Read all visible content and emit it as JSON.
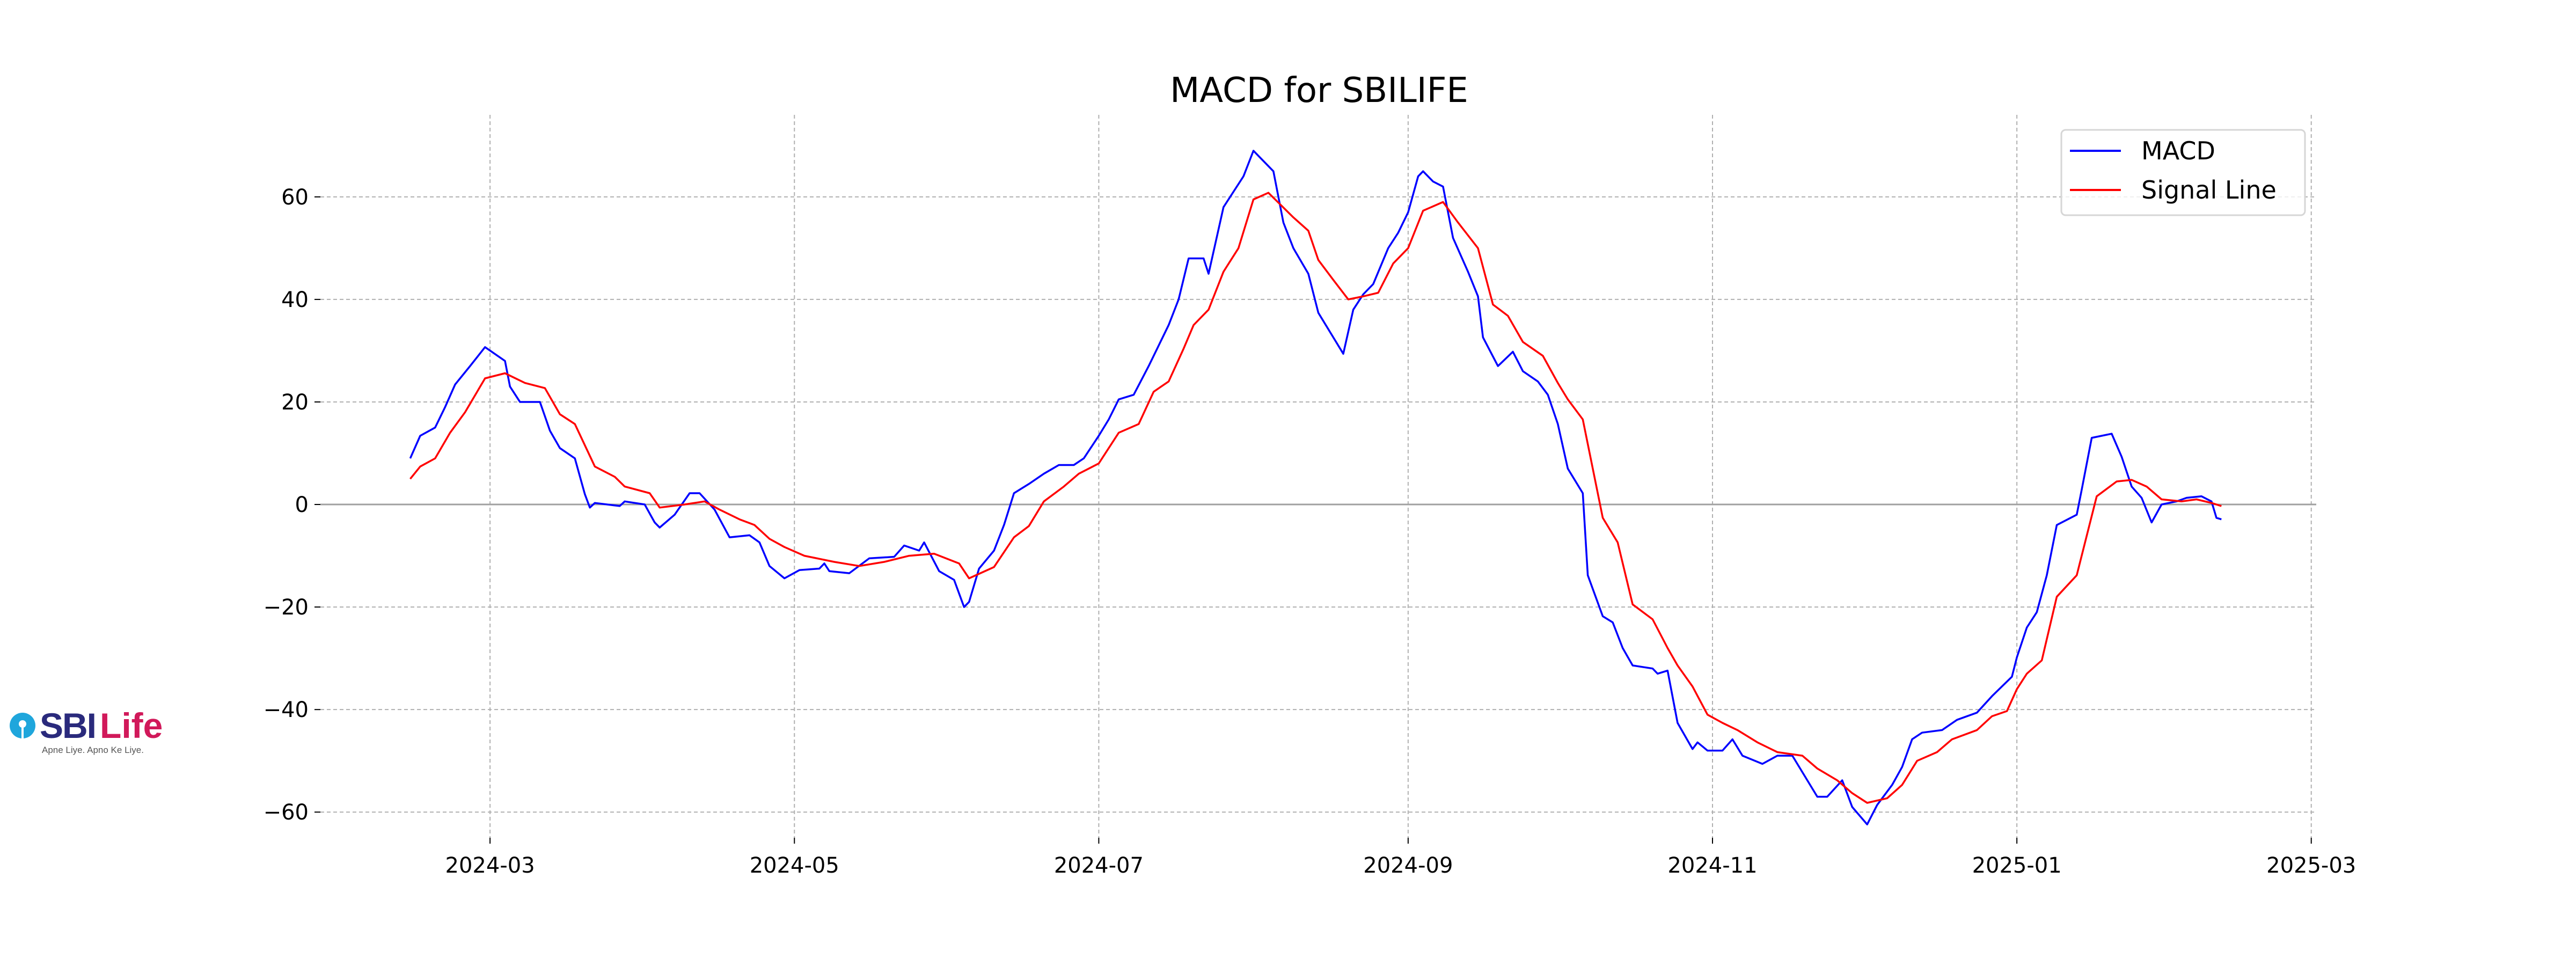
{
  "logo": {
    "brand_a": "SBI",
    "brand_b": "Life",
    "tagline": "Apne Liye. Apno Ke Liye."
  },
  "chart_data": {
    "type": "line",
    "title": "MACD for SBILIFE",
    "xlabel": "",
    "ylabel": "",
    "xlim": [
      "2024-01-27",
      "2025-03-02"
    ],
    "ylim": [
      -65,
      76
    ],
    "x_ticks": [
      "2024-03",
      "2024-05",
      "2024-07",
      "2024-09",
      "2024-11",
      "2025-01",
      "2025-03"
    ],
    "y_ticks": [
      -60,
      -40,
      -20,
      0,
      20,
      40,
      60
    ],
    "grid": true,
    "zero_line": 0,
    "legend": {
      "placement": "top-right",
      "entries": [
        "MACD",
        "Signal Line"
      ]
    },
    "colors": {
      "MACD": "#0000ff",
      "Signal Line": "#ff0000",
      "grid": "#b0b0b0",
      "zero": "#a0a0a0"
    },
    "series": [
      {
        "name": "MACD",
        "points": [
          [
            "2024-02-14",
            9
          ],
          [
            "2024-02-16",
            13.4
          ],
          [
            "2024-02-19",
            15
          ],
          [
            "2024-02-21",
            19
          ],
          [
            "2024-02-23",
            23.4
          ],
          [
            "2024-02-26",
            27
          ],
          [
            "2024-02-29",
            30.7
          ],
          [
            "2024-03-04",
            28
          ],
          [
            "2024-03-05",
            23
          ],
          [
            "2024-03-07",
            20
          ],
          [
            "2024-03-11",
            20
          ],
          [
            "2024-03-13",
            14.4
          ],
          [
            "2024-03-15",
            11
          ],
          [
            "2024-03-18",
            9
          ],
          [
            "2024-03-20",
            2
          ],
          [
            "2024-03-21",
            -0.6
          ],
          [
            "2024-03-22",
            0.3
          ],
          [
            "2024-03-27",
            -0.3
          ],
          [
            "2024-03-28",
            0.6
          ],
          [
            "2024-04-01",
            0
          ],
          [
            "2024-04-03",
            -3.5
          ],
          [
            "2024-04-04",
            -4.5
          ],
          [
            "2024-04-07",
            -2
          ],
          [
            "2024-04-10",
            2.2
          ],
          [
            "2024-04-12",
            2.2
          ],
          [
            "2024-04-15",
            -1
          ],
          [
            "2024-04-18",
            -6.4
          ],
          [
            "2024-04-22",
            -6
          ],
          [
            "2024-04-24",
            -7.4
          ],
          [
            "2024-04-26",
            -12
          ],
          [
            "2024-04-29",
            -14.4
          ],
          [
            "2024-05-02",
            -12.8
          ],
          [
            "2024-05-06",
            -12.5
          ],
          [
            "2024-05-07",
            -11.5
          ],
          [
            "2024-05-08",
            -13
          ],
          [
            "2024-05-12",
            -13.4
          ],
          [
            "2024-05-16",
            -10.5
          ],
          [
            "2024-05-21",
            -10.2
          ],
          [
            "2024-05-23",
            -8
          ],
          [
            "2024-05-26",
            -9
          ],
          [
            "2024-05-27",
            -7.4
          ],
          [
            "2024-05-30",
            -13
          ],
          [
            "2024-06-02",
            -14.7
          ],
          [
            "2024-06-04",
            -20
          ],
          [
            "2024-06-05",
            -19
          ],
          [
            "2024-06-07",
            -12.5
          ],
          [
            "2024-06-10",
            -9
          ],
          [
            "2024-06-12",
            -4
          ],
          [
            "2024-06-14",
            2.2
          ],
          [
            "2024-06-17",
            4
          ],
          [
            "2024-06-20",
            6
          ],
          [
            "2024-06-23",
            7.7
          ],
          [
            "2024-06-26",
            7.7
          ],
          [
            "2024-06-28",
            9
          ],
          [
            "2024-07-01",
            13.4
          ],
          [
            "2024-07-03",
            16.6
          ],
          [
            "2024-07-05",
            20.5
          ],
          [
            "2024-07-08",
            21.4
          ],
          [
            "2024-07-11",
            27
          ],
          [
            "2024-07-15",
            35
          ],
          [
            "2024-07-17",
            40
          ],
          [
            "2024-07-19",
            48
          ],
          [
            "2024-07-22",
            48
          ],
          [
            "2024-07-23",
            45
          ],
          [
            "2024-07-26",
            58
          ],
          [
            "2024-07-30",
            64
          ],
          [
            "2024-08-01",
            69
          ],
          [
            "2024-08-03",
            67
          ],
          [
            "2024-08-05",
            65
          ],
          [
            "2024-08-07",
            55
          ],
          [
            "2024-08-09",
            50
          ],
          [
            "2024-08-12",
            45
          ],
          [
            "2024-08-14",
            37.4
          ],
          [
            "2024-08-17",
            32.6
          ],
          [
            "2024-08-19",
            29.4
          ],
          [
            "2024-08-21",
            38
          ],
          [
            "2024-08-23",
            41
          ],
          [
            "2024-08-25",
            43
          ],
          [
            "2024-08-28",
            50
          ],
          [
            "2024-08-30",
            53
          ],
          [
            "2024-09-01",
            57
          ],
          [
            "2024-09-03",
            64
          ],
          [
            "2024-09-04",
            65
          ],
          [
            "2024-09-06",
            63
          ],
          [
            "2024-09-08",
            62
          ],
          [
            "2024-09-10",
            52
          ],
          [
            "2024-09-13",
            45.4
          ],
          [
            "2024-09-15",
            40.6
          ],
          [
            "2024-09-16",
            32.6
          ],
          [
            "2024-09-19",
            27
          ],
          [
            "2024-09-22",
            29.8
          ],
          [
            "2024-09-24",
            26
          ],
          [
            "2024-09-27",
            24
          ],
          [
            "2024-09-29",
            21.4
          ],
          [
            "2024-10-01",
            15.7
          ],
          [
            "2024-10-03",
            7
          ],
          [
            "2024-10-06",
            2.2
          ],
          [
            "2024-10-07",
            -13.8
          ],
          [
            "2024-10-10",
            -21.8
          ],
          [
            "2024-10-12",
            -23
          ],
          [
            "2024-10-14",
            -28
          ],
          [
            "2024-10-16",
            -31.4
          ],
          [
            "2024-10-20",
            -32
          ],
          [
            "2024-10-21",
            -33
          ],
          [
            "2024-10-23",
            -32.4
          ],
          [
            "2024-10-25",
            -42.6
          ],
          [
            "2024-10-28",
            -47.7
          ],
          [
            "2024-10-29",
            -46.4
          ],
          [
            "2024-10-31",
            -48
          ],
          [
            "2024-11-03",
            -48
          ],
          [
            "2024-11-05",
            -45.8
          ],
          [
            "2024-11-07",
            -49
          ],
          [
            "2024-11-11",
            -50.6
          ],
          [
            "2024-11-14",
            -49
          ],
          [
            "2024-11-17",
            -49
          ],
          [
            "2024-11-22",
            -57
          ],
          [
            "2024-11-24",
            -57
          ],
          [
            "2024-11-27",
            -53.8
          ],
          [
            "2024-11-29",
            -59
          ],
          [
            "2024-12-02",
            -62.4
          ],
          [
            "2024-12-04",
            -58.6
          ],
          [
            "2024-12-07",
            -54.7
          ],
          [
            "2024-12-09",
            -51.2
          ],
          [
            "2024-12-11",
            -45.8
          ],
          [
            "2024-12-13",
            -44.5
          ],
          [
            "2024-12-17",
            -44
          ],
          [
            "2024-12-20",
            -42
          ],
          [
            "2024-12-24",
            -40.6
          ],
          [
            "2024-12-27",
            -37.4
          ],
          [
            "2024-12-31",
            -33.6
          ],
          [
            "2025-01-01",
            -29.8
          ],
          [
            "2025-01-03",
            -24
          ],
          [
            "2025-01-05",
            -21
          ],
          [
            "2025-01-07",
            -13.8
          ],
          [
            "2025-01-09",
            -4
          ],
          [
            "2025-01-13",
            -2
          ],
          [
            "2025-01-14",
            2.9
          ],
          [
            "2025-01-16",
            13
          ],
          [
            "2025-01-20",
            13.8
          ],
          [
            "2025-01-22",
            9.3
          ],
          [
            "2025-01-24",
            3.5
          ],
          [
            "2025-01-26",
            1.3
          ],
          [
            "2025-01-28",
            -3.5
          ],
          [
            "2025-01-30",
            0
          ],
          [
            "2025-02-02",
            0.6
          ],
          [
            "2025-02-04",
            1.3
          ],
          [
            "2025-02-07",
            1.6
          ],
          [
            "2025-02-09",
            0.6
          ],
          [
            "2025-02-10",
            -2.6
          ],
          [
            "2025-02-11",
            -2.9
          ]
        ]
      },
      {
        "name": "Signal Line",
        "points": [
          [
            "2024-02-14",
            5
          ],
          [
            "2024-02-16",
            7.4
          ],
          [
            "2024-02-19",
            9
          ],
          [
            "2024-02-22",
            14
          ],
          [
            "2024-02-25",
            18
          ],
          [
            "2024-02-29",
            24.6
          ],
          [
            "2024-03-04",
            25.6
          ],
          [
            "2024-03-08",
            23.7
          ],
          [
            "2024-03-12",
            22.7
          ],
          [
            "2024-03-15",
            17.6
          ],
          [
            "2024-03-18",
            15.7
          ],
          [
            "2024-03-22",
            7.4
          ],
          [
            "2024-03-26",
            5.4
          ],
          [
            "2024-03-28",
            3.5
          ],
          [
            "2024-04-02",
            2.2
          ],
          [
            "2024-04-04",
            -0.6
          ],
          [
            "2024-04-09",
            0
          ],
          [
            "2024-04-13",
            0.6
          ],
          [
            "2024-04-16",
            -1
          ],
          [
            "2024-04-20",
            -2.9
          ],
          [
            "2024-04-23",
            -4
          ],
          [
            "2024-04-26",
            -6.7
          ],
          [
            "2024-04-29",
            -8.3
          ],
          [
            "2024-05-03",
            -10
          ],
          [
            "2024-05-09",
            -11.2
          ],
          [
            "2024-05-14",
            -12
          ],
          [
            "2024-05-19",
            -11.2
          ],
          [
            "2024-05-24",
            -10
          ],
          [
            "2024-05-29",
            -9.6
          ],
          [
            "2024-06-03",
            -11.5
          ],
          [
            "2024-06-05",
            -14.4
          ],
          [
            "2024-06-10",
            -12.2
          ],
          [
            "2024-06-14",
            -6.4
          ],
          [
            "2024-06-17",
            -4.2
          ],
          [
            "2024-06-20",
            0.6
          ],
          [
            "2024-06-24",
            3.5
          ],
          [
            "2024-06-27",
            6
          ],
          [
            "2024-07-01",
            8
          ],
          [
            "2024-07-05",
            14
          ],
          [
            "2024-07-09",
            15.7
          ],
          [
            "2024-07-12",
            22
          ],
          [
            "2024-07-15",
            24
          ],
          [
            "2024-07-18",
            30.4
          ],
          [
            "2024-07-20",
            35
          ],
          [
            "2024-07-23",
            38
          ],
          [
            "2024-07-26",
            45.4
          ],
          [
            "2024-07-29",
            50
          ],
          [
            "2024-08-01",
            59.5
          ],
          [
            "2024-08-04",
            60.8
          ],
          [
            "2024-08-09",
            56
          ],
          [
            "2024-08-12",
            53.4
          ],
          [
            "2024-08-14",
            47.7
          ],
          [
            "2024-08-17",
            43.8
          ],
          [
            "2024-08-20",
            40
          ],
          [
            "2024-08-23",
            40.6
          ],
          [
            "2024-08-26",
            41.3
          ],
          [
            "2024-08-29",
            47
          ],
          [
            "2024-09-01",
            50
          ],
          [
            "2024-09-04",
            57.3
          ],
          [
            "2024-09-08",
            59
          ],
          [
            "2024-09-11",
            55
          ],
          [
            "2024-09-15",
            50
          ],
          [
            "2024-09-18",
            39
          ],
          [
            "2024-09-21",
            36.8
          ],
          [
            "2024-09-24",
            31.7
          ],
          [
            "2024-09-28",
            29
          ],
          [
            "2024-10-01",
            23.7
          ],
          [
            "2024-10-03",
            20.5
          ],
          [
            "2024-10-06",
            16.6
          ],
          [
            "2024-10-10",
            -2.6
          ],
          [
            "2024-10-13",
            -7.4
          ],
          [
            "2024-10-16",
            -19.5
          ],
          [
            "2024-10-20",
            -22.4
          ],
          [
            "2024-10-23",
            -28
          ],
          [
            "2024-10-25",
            -31.4
          ],
          [
            "2024-10-28",
            -35.5
          ],
          [
            "2024-10-31",
            -41
          ],
          [
            "2024-11-03",
            -42.6
          ],
          [
            "2024-11-06",
            -44
          ],
          [
            "2024-11-10",
            -46.4
          ],
          [
            "2024-11-14",
            -48.3
          ],
          [
            "2024-11-19",
            -49
          ],
          [
            "2024-11-22",
            -51.5
          ],
          [
            "2024-11-26",
            -53.8
          ],
          [
            "2024-11-29",
            -56.3
          ],
          [
            "2024-12-02",
            -58.2
          ],
          [
            "2024-12-06",
            -57.3
          ],
          [
            "2024-12-09",
            -54.7
          ],
          [
            "2024-12-12",
            -50
          ],
          [
            "2024-12-16",
            -48.3
          ],
          [
            "2024-12-19",
            -45.8
          ],
          [
            "2024-12-24",
            -44
          ],
          [
            "2024-12-27",
            -41.3
          ],
          [
            "2024-12-30",
            -40.3
          ],
          [
            "2025-01-01",
            -36
          ],
          [
            "2025-01-03",
            -33
          ],
          [
            "2025-01-06",
            -30.4
          ],
          [
            "2025-01-09",
            -18
          ],
          [
            "2025-01-13",
            -13.8
          ],
          [
            "2025-01-17",
            1.6
          ],
          [
            "2025-01-21",
            4.5
          ],
          [
            "2025-01-24",
            4.8
          ],
          [
            "2025-01-27",
            3.5
          ],
          [
            "2025-01-30",
            1
          ],
          [
            "2025-02-03",
            0.6
          ],
          [
            "2025-02-06",
            1
          ],
          [
            "2025-02-09",
            0.3
          ],
          [
            "2025-02-11",
            -0.3
          ]
        ]
      }
    ]
  }
}
